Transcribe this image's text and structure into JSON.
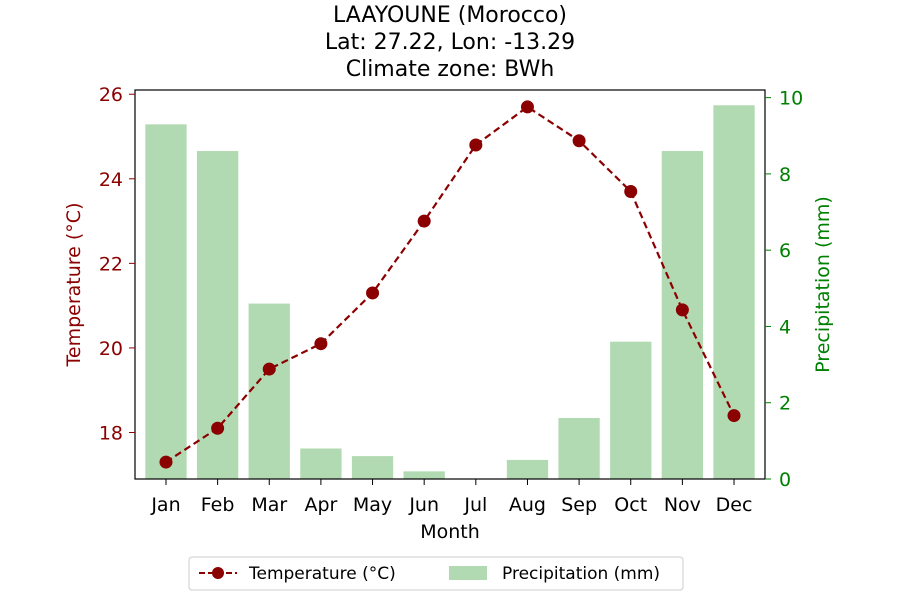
{
  "chart_data": {
    "type": "bar+line",
    "title_lines": [
      "LAAYOUNE (Morocco)",
      "Lat: 27.22, Lon: -13.29",
      "Climate zone: BWh"
    ],
    "xlabel": "Month",
    "categories": [
      "Jan",
      "Feb",
      "Mar",
      "Apr",
      "May",
      "Jun",
      "Jul",
      "Aug",
      "Sep",
      "Oct",
      "Nov",
      "Dec"
    ],
    "left_axis": {
      "label": "Temperature (°C)",
      "ylim": [
        16.9,
        26.1
      ],
      "ticks": [
        18,
        20,
        22,
        24,
        26
      ]
    },
    "right_axis": {
      "label": "Precipitation (mm)",
      "ylim": [
        0,
        10.2
      ],
      "ticks": [
        0,
        2,
        4,
        6,
        8,
        10
      ]
    },
    "series": [
      {
        "name": "Temperature (°C)",
        "kind": "line",
        "axis": "left",
        "values": [
          17.3,
          18.1,
          19.5,
          20.1,
          21.3,
          23.0,
          24.8,
          25.7,
          24.9,
          23.7,
          20.9,
          18.4
        ]
      },
      {
        "name": "Precipitation (mm)",
        "kind": "bar",
        "axis": "right",
        "values": [
          9.3,
          8.6,
          4.6,
          0.8,
          0.6,
          0.2,
          0.0,
          0.5,
          1.6,
          3.6,
          8.6,
          9.8
        ]
      }
    ],
    "colors": {
      "temperature": "#8b0000",
      "precipitation": "#b2dab2",
      "precip_axis": "#008000"
    },
    "grid": false,
    "legend_position": "bottom-center"
  }
}
